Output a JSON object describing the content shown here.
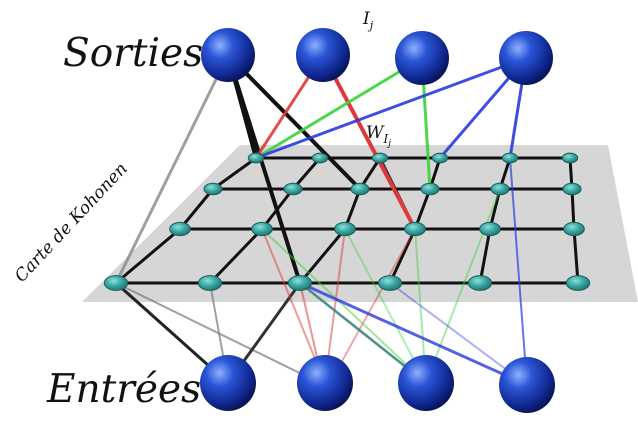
{
  "labels": {
    "outputs": "Sorties",
    "inputs": "Entrées",
    "map": "Carte de Kohonen",
    "output_node_main": "I",
    "output_node_sub": "j",
    "weight_main": "W",
    "weight_sub": "I",
    "weight_subsub": "j"
  },
  "colors": {
    "node_blue": "#1d3fb8",
    "map_node": "#3aa7a3",
    "plane": "#cfcfcf",
    "grid_line": "#111111",
    "red": "#e0383a",
    "green": "#3bd23b",
    "blue": "#2a3adf"
  },
  "diagram": {
    "output_nodes": 4,
    "input_nodes": 4,
    "map_rows": 4,
    "map_cols": 6
  }
}
